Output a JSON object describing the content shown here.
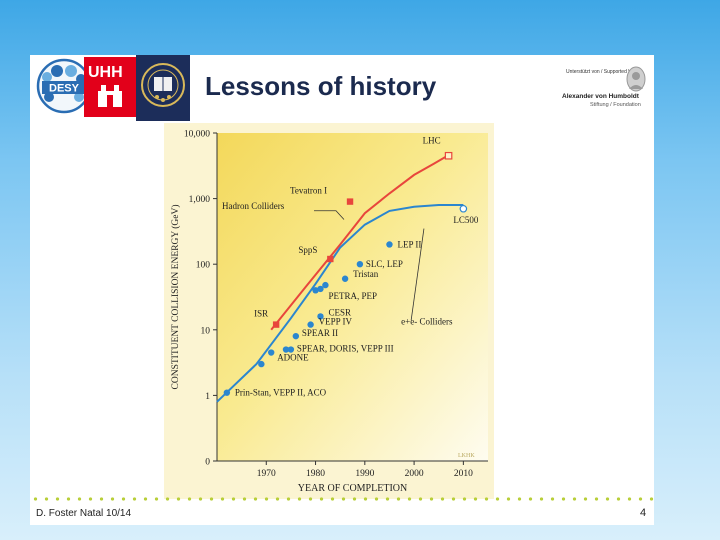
{
  "slide": {
    "title": "Lessons of history",
    "footer_left": "D. Foster   Natal   10/14",
    "page_number": "4",
    "logos": {
      "desy": "DESY",
      "uhh": "UHH",
      "humboldt_small": "Unterstützt von / Supported by",
      "humboldt_name": "Alexander von Humboldt",
      "humboldt_sub": "Stiftung / Foundation"
    }
  },
  "chart_data": {
    "type": "line",
    "title": "",
    "xlabel": "YEAR OF COMPLETION",
    "ylabel": "CONSTITUENT COLLISION ENERGY (GeV)",
    "y_scale": "log",
    "xlim": [
      1960,
      2015
    ],
    "y_tick_labels": [
      "0",
      "1",
      "10",
      "100",
      "1,000",
      "10,000"
    ],
    "x_ticks": [
      1970,
      1980,
      1990,
      2000,
      2010
    ],
    "series": [
      {
        "name": "Hadron Colliders",
        "color": "#e8463c",
        "curve": [
          [
            1971,
            10
          ],
          [
            1978,
            45
          ],
          [
            1985,
            200
          ],
          [
            1990,
            600
          ],
          [
            1995,
            1200
          ],
          [
            2000,
            2300
          ],
          [
            2004,
            3400
          ],
          [
            2007,
            4600
          ]
        ],
        "points": [
          {
            "label": "ISR",
            "x": 1972,
            "y": 12
          },
          {
            "label": "SppS",
            "x": 1983,
            "y": 120
          },
          {
            "label": "Tevatron I",
            "x": 1987,
            "y": 900
          },
          {
            "label": "LHC",
            "x": 2007,
            "y": 4500
          }
        ]
      },
      {
        "name": "e+e- Colliders",
        "color": "#2b86cf",
        "curve": [
          [
            1960,
            0.8
          ],
          [
            1968,
            3
          ],
          [
            1975,
            15
          ],
          [
            1980,
            50
          ],
          [
            1985,
            180
          ],
          [
            1990,
            400
          ],
          [
            1995,
            650
          ],
          [
            2000,
            750
          ],
          [
            2005,
            800
          ],
          [
            2010,
            800
          ]
        ],
        "points": [
          {
            "label": "Prin-Stan, VEPP II, ACO",
            "x": 1962,
            "y": 1.1
          },
          {
            "label": "",
            "x": 1969,
            "y": 3
          },
          {
            "label": "ADONE",
            "x": 1971,
            "y": 4.5
          },
          {
            "label": "",
            "x": 1974,
            "y": 5
          },
          {
            "label": "SPEAR, DORIS, VEPP III",
            "x": 1975,
            "y": 5
          },
          {
            "label": "SPEAR II",
            "x": 1976,
            "y": 8
          },
          {
            "label": "VEPP IV",
            "x": 1979,
            "y": 12
          },
          {
            "label": "CESR",
            "x": 1981,
            "y": 16
          },
          {
            "label": "",
            "x": 1980,
            "y": 40
          },
          {
            "label": "PETRA, PEP",
            "x": 1981,
            "y": 42
          },
          {
            "label": "",
            "x": 1982,
            "y": 48
          },
          {
            "label": "Tristan",
            "x": 1986,
            "y": 60
          },
          {
            "label": "SLC, LEP",
            "x": 1989,
            "y": 100
          },
          {
            "label": "LEP II",
            "x": 1995,
            "y": 200
          },
          {
            "label": "LC500",
            "x": 2010,
            "y": 700
          }
        ]
      }
    ],
    "annotations": [
      {
        "text": "Hadron Colliders"
      },
      {
        "text": "e+e- Colliders"
      }
    ],
    "watermark": "LKHK"
  }
}
